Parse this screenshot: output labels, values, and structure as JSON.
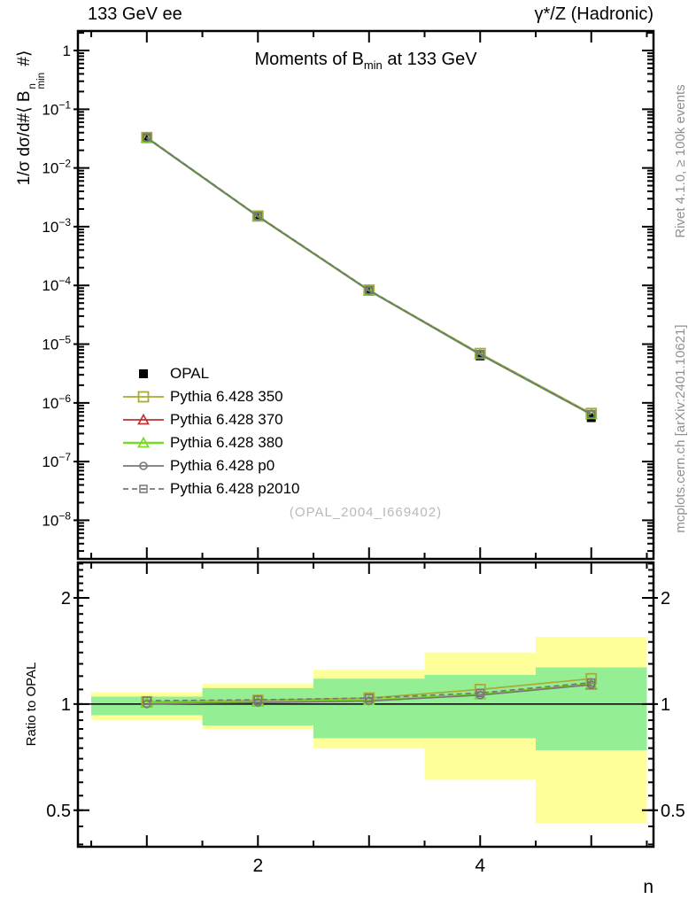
{
  "header": {
    "left": "133 GeV ee",
    "right": "γ*/Z (Hadronic)"
  },
  "right_captions": {
    "top": "Rivet 4.1.0, ≥ 100k events",
    "bottom": "mcplots.cern.ch [arXiv:2401.10621]"
  },
  "title": {
    "pre": "Moments of B",
    "sub": "min",
    "post": " at 133 GeV"
  },
  "main_ylabel": {
    "pre": "1/σ  dσ/d#⟨ B",
    "sup": "n",
    "sub": "min",
    "post": " #⟩"
  },
  "ratio_ylabel": "Ratio to OPAL",
  "xlabel": "n",
  "watermark": "(OPAL_2004_I669402)",
  "colors": {
    "band_yellow": "#ffff99",
    "band_green": "#94ee94",
    "axis": "#000000",
    "watermark": "#b9b9b9",
    "caption_gray": "#909090"
  },
  "chart_data": {
    "type": "line",
    "title": "Moments of B_min at 133 GeV",
    "xlabel": "n",
    "x": [
      1,
      2,
      3,
      4,
      5
    ],
    "x_range": [
      0.38,
      5.56
    ],
    "x_major_ticks": [
      1,
      2,
      3,
      4,
      5
    ],
    "x_labeled_ticks": [
      2,
      4
    ],
    "x_minor_step": 0.5,
    "main_panel": {
      "ylog": true,
      "y_range": [
        2.2e-09,
        2.15
      ],
      "y_tick_exponents": [
        0,
        -1,
        -2,
        -3,
        -4,
        -5,
        -6,
        -7,
        -8
      ],
      "opal": {
        "name": "OPAL",
        "color": "#000000",
        "marker": "filled-square",
        "values": [
          0.0325,
          0.00148,
          8e-05,
          6.3e-06,
          5.6e-07
        ]
      }
    },
    "series": [
      {
        "name": "Pythia 6.428 350",
        "color": "#aaaa33",
        "marker": "open-square",
        "line": "solid",
        "width": 1.7,
        "ratio": [
          1.015,
          1.025,
          1.04,
          1.1,
          1.18
        ]
      },
      {
        "name": "Pythia 6.428 370",
        "color": "#bb3333",
        "marker": "open-triangle",
        "line": "solid",
        "width": 1.7,
        "ratio": [
          1.008,
          1.015,
          1.025,
          1.065,
          1.135
        ]
      },
      {
        "name": "Pythia 6.428 380",
        "color": "#77dd22",
        "marker": "open-triangle",
        "line": "solid",
        "width": 2.6,
        "ratio": [
          1.008,
          1.015,
          1.025,
          1.065,
          1.14
        ]
      },
      {
        "name": "Pythia 6.428 p0",
        "color": "#777777",
        "marker": "open-circle",
        "line": "solid",
        "width": 1.7,
        "ratio": [
          1.0,
          1.01,
          1.02,
          1.06,
          1.135
        ]
      },
      {
        "name": "Pythia 6.428 p2010",
        "color": "#777777",
        "marker": "open-square-small",
        "line": "dashed",
        "width": 1.7,
        "ratio": [
          1.022,
          1.028,
          1.04,
          1.075,
          1.15
        ]
      }
    ],
    "ratio_panel": {
      "ylog": true,
      "y_range": [
        0.394,
        2.52
      ],
      "y_labeled_ticks": [
        2,
        1,
        0.5
      ],
      "ref_line": 1,
      "bands": [
        {
          "x": [
            0.5,
            1.5
          ],
          "yellow": [
            0.9,
            1.08
          ],
          "green": [
            0.93,
            1.05
          ]
        },
        {
          "x": [
            1.5,
            2.5
          ],
          "yellow": [
            0.85,
            1.14
          ],
          "green": [
            0.87,
            1.11
          ]
        },
        {
          "x": [
            2.5,
            3.5
          ],
          "yellow": [
            0.75,
            1.25
          ],
          "green": [
            0.8,
            1.18
          ]
        },
        {
          "x": [
            3.5,
            4.5
          ],
          "yellow": [
            0.61,
            1.4
          ],
          "green": [
            0.8,
            1.21
          ]
        },
        {
          "x": [
            4.5,
            5.5
          ],
          "yellow": [
            0.46,
            1.55
          ],
          "green": [
            0.74,
            1.27
          ]
        }
      ]
    }
  }
}
